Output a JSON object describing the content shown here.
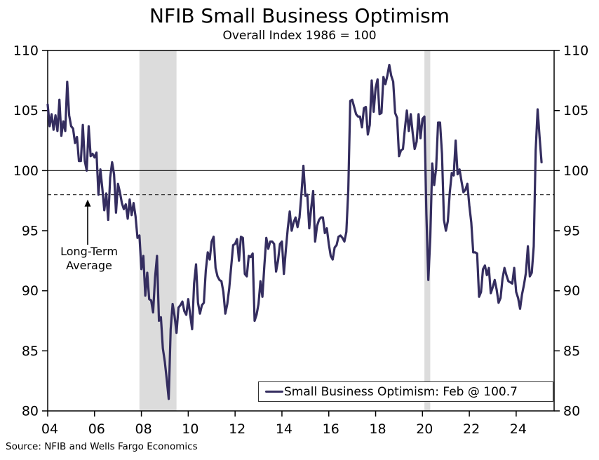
{
  "title": "NFIB Small Business Optimism",
  "subtitle": "Overall Index 1986 = 100",
  "source": "Source: NFIB and Wells Fargo Economics",
  "annotation": {
    "line1": "Long-Term",
    "line2": "Average",
    "points_to_value": 98
  },
  "legend": {
    "label": "Small Business Optimism: Feb @ 100.7"
  },
  "colors": {
    "series_line": "#342d5f",
    "recession_band": "#dcdcdc",
    "axis": "#000000",
    "reference_line": "#000000",
    "average_dashed_line": "#333333",
    "background": "#ffffff"
  },
  "chart_data": {
    "type": "line",
    "title": "NFIB Small Business Optimism",
    "subtitle": "Overall Index 1986 = 100",
    "xlim": [
      2004,
      2025.62
    ],
    "ylim": [
      80,
      110
    ],
    "grid": false,
    "legend_position": "bottom-right",
    "y_ticks": [
      80,
      85,
      90,
      95,
      100,
      105,
      110
    ],
    "y_axis_sides": [
      "left",
      "right"
    ],
    "x_ticks": [
      2004,
      2006,
      2008,
      2010,
      2012,
      2014,
      2016,
      2018,
      2020,
      2022,
      2024
    ],
    "x_tick_labels": [
      "04",
      "06",
      "08",
      "10",
      "12",
      "14",
      "16",
      "18",
      "20",
      "22",
      "24"
    ],
    "reference_lines": [
      {
        "value": 100,
        "style": "solid",
        "label": ""
      },
      {
        "value": 98,
        "style": "dashed",
        "label": "Long-Term Average"
      }
    ],
    "recession_bands": [
      {
        "x_start": 2007.917,
        "x_end": 2009.5
      },
      {
        "x_start": 2020.083,
        "x_end": 2020.333
      }
    ],
    "series": [
      {
        "name": "Small Business Optimism",
        "last_point_label": "Feb @ 100.7",
        "color": "#342d5f",
        "x_start": 2004.0,
        "x_step": 0.0833333,
        "frequency": "monthly",
        "values": [
          105.5,
          103.7,
          104.7,
          103.4,
          104.6,
          103.3,
          105.9,
          102.9,
          104.1,
          103.3,
          107.4,
          104.6,
          103.7,
          103.5,
          102.3,
          102.8,
          100.8,
          100.8,
          103.8,
          100.8,
          100.0,
          103.7,
          101.2,
          101.4,
          101.1,
          101.5,
          98.0,
          100.1,
          98.5,
          96.7,
          98.1,
          95.9,
          99.4,
          100.7,
          99.7,
          96.5,
          98.9,
          98.2,
          97.3,
          96.8,
          97.2,
          96.0,
          97.6,
          96.3,
          97.3,
          96.2,
          94.4,
          94.6,
          91.8,
          92.9,
          89.6,
          91.5,
          89.3,
          89.2,
          88.2,
          91.1,
          92.9,
          87.5,
          87.8,
          85.2,
          84.1,
          82.6,
          81.0,
          86.8,
          88.9,
          87.9,
          86.5,
          88.6,
          88.8,
          89.1,
          88.3,
          88.0,
          89.3,
          88.0,
          86.8,
          90.6,
          92.2,
          89.0,
          88.1,
          88.8,
          89.0,
          91.7,
          93.2,
          92.6,
          94.1,
          94.5,
          91.9,
          91.2,
          90.9,
          90.8,
          89.9,
          88.1,
          88.9,
          90.2,
          92.0,
          93.8,
          93.9,
          94.3,
          92.5,
          94.5,
          94.4,
          91.4,
          91.2,
          92.9,
          92.8,
          93.1,
          87.5,
          88.0,
          88.9,
          90.8,
          89.5,
          92.1,
          94.4,
          93.5,
          94.1,
          94.1,
          93.9,
          91.6,
          92.5,
          93.9,
          94.1,
          91.4,
          93.4,
          95.2,
          96.6,
          95.0,
          95.7,
          96.1,
          95.3,
          96.1,
          98.1,
          100.4,
          97.9,
          98.0,
          95.2,
          96.9,
          98.3,
          94.1,
          95.4,
          95.9,
          96.1,
          96.1,
          94.8,
          95.2,
          93.9,
          92.9,
          92.6,
          93.6,
          93.8,
          94.5,
          94.6,
          94.4,
          94.1,
          94.9,
          98.4,
          105.8,
          105.9,
          105.3,
          104.7,
          104.5,
          104.5,
          103.6,
          105.2,
          105.3,
          103.0,
          103.8,
          107.5,
          104.9,
          106.9,
          107.6,
          104.7,
          104.8,
          107.8,
          107.2,
          107.9,
          108.8,
          107.9,
          107.4,
          104.8,
          104.4,
          101.2,
          101.7,
          101.8,
          103.5,
          105.0,
          103.3,
          104.7,
          103.1,
          101.8,
          102.4,
          104.7,
          102.7,
          104.3,
          104.5,
          96.4,
          90.9,
          94.4,
          100.6,
          98.8,
          100.2,
          104.0,
          104.0,
          101.4,
          95.9,
          95.0,
          95.8,
          98.2,
          99.8,
          99.6,
          102.5,
          99.7,
          100.1,
          99.1,
          98.2,
          98.4,
          98.9,
          97.1,
          95.7,
          93.2,
          93.2,
          93.1,
          89.5,
          89.9,
          91.8,
          92.1,
          91.3,
          91.9,
          89.8,
          90.3,
          90.9,
          90.1,
          89.0,
          89.4,
          91.0,
          91.9,
          91.3,
          90.8,
          90.7,
          90.6,
          91.9,
          89.9,
          89.4,
          88.5,
          89.7,
          90.5,
          91.5,
          93.7,
          91.2,
          91.5,
          93.7,
          101.7,
          105.1,
          102.8,
          100.7
        ]
      }
    ]
  }
}
